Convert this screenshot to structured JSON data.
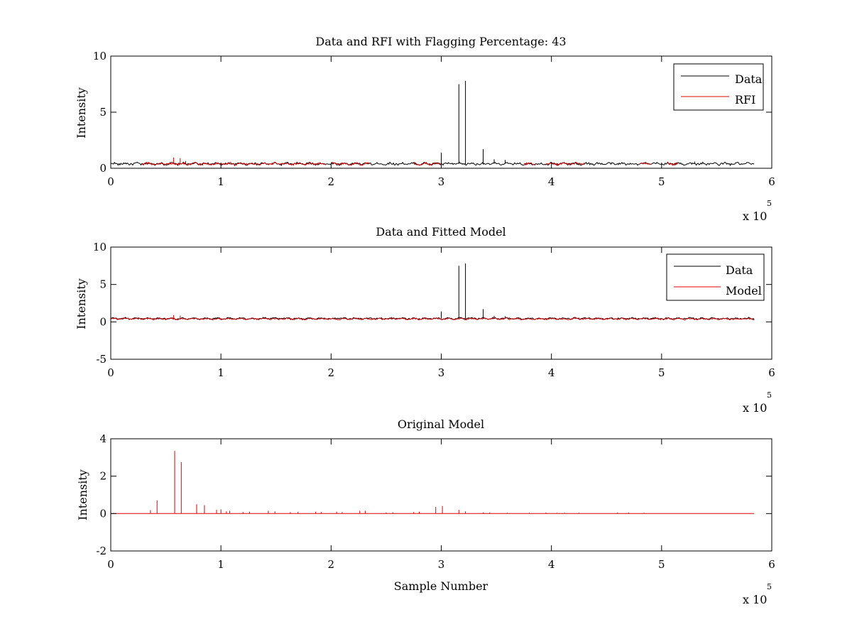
{
  "chart_data": [
    {
      "type": "line",
      "title": "Data and RFI with Flagging Percentage: 43",
      "xlabel": "",
      "ylabel": "Intensity",
      "xlim": [
        0,
        6
      ],
      "ylim": [
        0,
        10
      ],
      "x_ticks": [
        0,
        1,
        2,
        3,
        4,
        5,
        6
      ],
      "y_ticks": [
        0,
        5,
        10
      ],
      "x_multiplier": "x 10",
      "x_multiplier_exp": "5",
      "legend": {
        "position": "top-right",
        "entries": [
          "Data",
          "RFI"
        ]
      },
      "series": [
        {
          "name": "Data",
          "color": "#000000",
          "baseline": 0.4,
          "spikes": [
            {
              "x": 3.0,
              "y": 1.4
            },
            {
              "x": 3.16,
              "y": 7.5
            },
            {
              "x": 3.22,
              "y": 7.8
            },
            {
              "x": 3.38,
              "y": 1.7
            },
            {
              "x": 3.48,
              "y": 0.8
            },
            {
              "x": 3.58,
              "y": 0.75
            },
            {
              "x": 5.3,
              "y": 0.6
            }
          ]
        },
        {
          "name": "RFI",
          "color": "#dd0000",
          "baseline": 0.4,
          "segments": [
            [
              0.28,
              1.95
            ],
            [
              2.0,
              2.35
            ],
            [
              2.75,
              3.0
            ],
            [
              3.75,
              3.85
            ],
            [
              3.95,
              4.3
            ],
            [
              4.8,
              4.9
            ],
            [
              5.05,
              5.15
            ]
          ],
          "spikes": [
            {
              "x": 0.57,
              "y": 0.95
            },
            {
              "x": 0.63,
              "y": 0.9
            },
            {
              "x": 0.68,
              "y": 0.65
            }
          ]
        }
      ]
    },
    {
      "type": "line",
      "title": "Data and Fitted Model",
      "xlabel": "",
      "ylabel": "Intensity",
      "xlim": [
        0,
        6
      ],
      "ylim": [
        -5,
        10
      ],
      "x_ticks": [
        0,
        1,
        2,
        3,
        4,
        5,
        6
      ],
      "y_ticks": [
        -5,
        0,
        5,
        10
      ],
      "x_multiplier": "x 10",
      "x_multiplier_exp": "5",
      "legend": {
        "position": "top-right",
        "entries": [
          "Data",
          "Model"
        ]
      },
      "series": [
        {
          "name": "Data",
          "color": "#000000",
          "baseline": 0.45,
          "spikes": [
            {
              "x": 3.0,
              "y": 1.4
            },
            {
              "x": 3.16,
              "y": 7.5
            },
            {
              "x": 3.22,
              "y": 7.8
            },
            {
              "x": 3.38,
              "y": 1.7
            },
            {
              "x": 3.48,
              "y": 0.8
            },
            {
              "x": 3.58,
              "y": 0.75
            }
          ]
        },
        {
          "name": "Model",
          "color": "#dd0000",
          "baseline": 0.4,
          "spikes": [
            {
              "x": 0.57,
              "y": 0.9
            },
            {
              "x": 0.63,
              "y": 0.85
            }
          ]
        }
      ]
    },
    {
      "type": "line",
      "title": "Original Model",
      "xlabel": "Sample Number",
      "ylabel": "Intensity",
      "xlim": [
        0,
        6
      ],
      "ylim": [
        -2,
        4
      ],
      "x_ticks": [
        0,
        1,
        2,
        3,
        4,
        5,
        6
      ],
      "y_ticks": [
        -2,
        0,
        2,
        4
      ],
      "x_multiplier": "x 10",
      "x_multiplier_exp": "5",
      "series": [
        {
          "color": "#dd0000",
          "baseline": 0.0,
          "spikes": [
            {
              "x": 0.36,
              "y": 0.18
            },
            {
              "x": 0.42,
              "y": 0.7
            },
            {
              "x": 0.58,
              "y": 3.35
            },
            {
              "x": 0.64,
              "y": 2.75
            },
            {
              "x": 0.78,
              "y": 0.5
            },
            {
              "x": 0.85,
              "y": 0.45
            },
            {
              "x": 0.96,
              "y": 0.2
            },
            {
              "x": 1.0,
              "y": 0.22
            },
            {
              "x": 1.05,
              "y": 0.12
            },
            {
              "x": 1.08,
              "y": 0.15
            },
            {
              "x": 1.2,
              "y": 0.08
            },
            {
              "x": 1.26,
              "y": 0.1
            },
            {
              "x": 1.43,
              "y": 0.15
            },
            {
              "x": 1.49,
              "y": 0.12
            },
            {
              "x": 1.63,
              "y": 0.08
            },
            {
              "x": 1.7,
              "y": 0.1
            },
            {
              "x": 1.86,
              "y": 0.1
            },
            {
              "x": 1.91,
              "y": 0.08
            },
            {
              "x": 2.05,
              "y": 0.1
            },
            {
              "x": 2.1,
              "y": 0.08
            },
            {
              "x": 2.26,
              "y": 0.15
            },
            {
              "x": 2.31,
              "y": 0.15
            },
            {
              "x": 2.5,
              "y": 0.06
            },
            {
              "x": 2.56,
              "y": 0.06
            },
            {
              "x": 2.75,
              "y": 0.08
            },
            {
              "x": 2.8,
              "y": 0.1
            },
            {
              "x": 2.95,
              "y": 0.35
            },
            {
              "x": 3.01,
              "y": 0.4
            },
            {
              "x": 3.16,
              "y": 0.2
            },
            {
              "x": 3.22,
              "y": 0.12
            },
            {
              "x": 3.38,
              "y": 0.06
            },
            {
              "x": 3.44,
              "y": 0.05
            },
            {
              "x": 3.6,
              "y": 0.04
            },
            {
              "x": 3.8,
              "y": 0.04
            },
            {
              "x": 3.95,
              "y": 0.05
            },
            {
              "x": 4.05,
              "y": 0.04
            },
            {
              "x": 4.12,
              "y": 0.04
            },
            {
              "x": 4.25,
              "y": 0.04
            },
            {
              "x": 4.6,
              "y": 0.05
            },
            {
              "x": 4.7,
              "y": 0.06
            },
            {
              "x": 4.84,
              "y": 0.04
            }
          ]
        }
      ]
    }
  ]
}
